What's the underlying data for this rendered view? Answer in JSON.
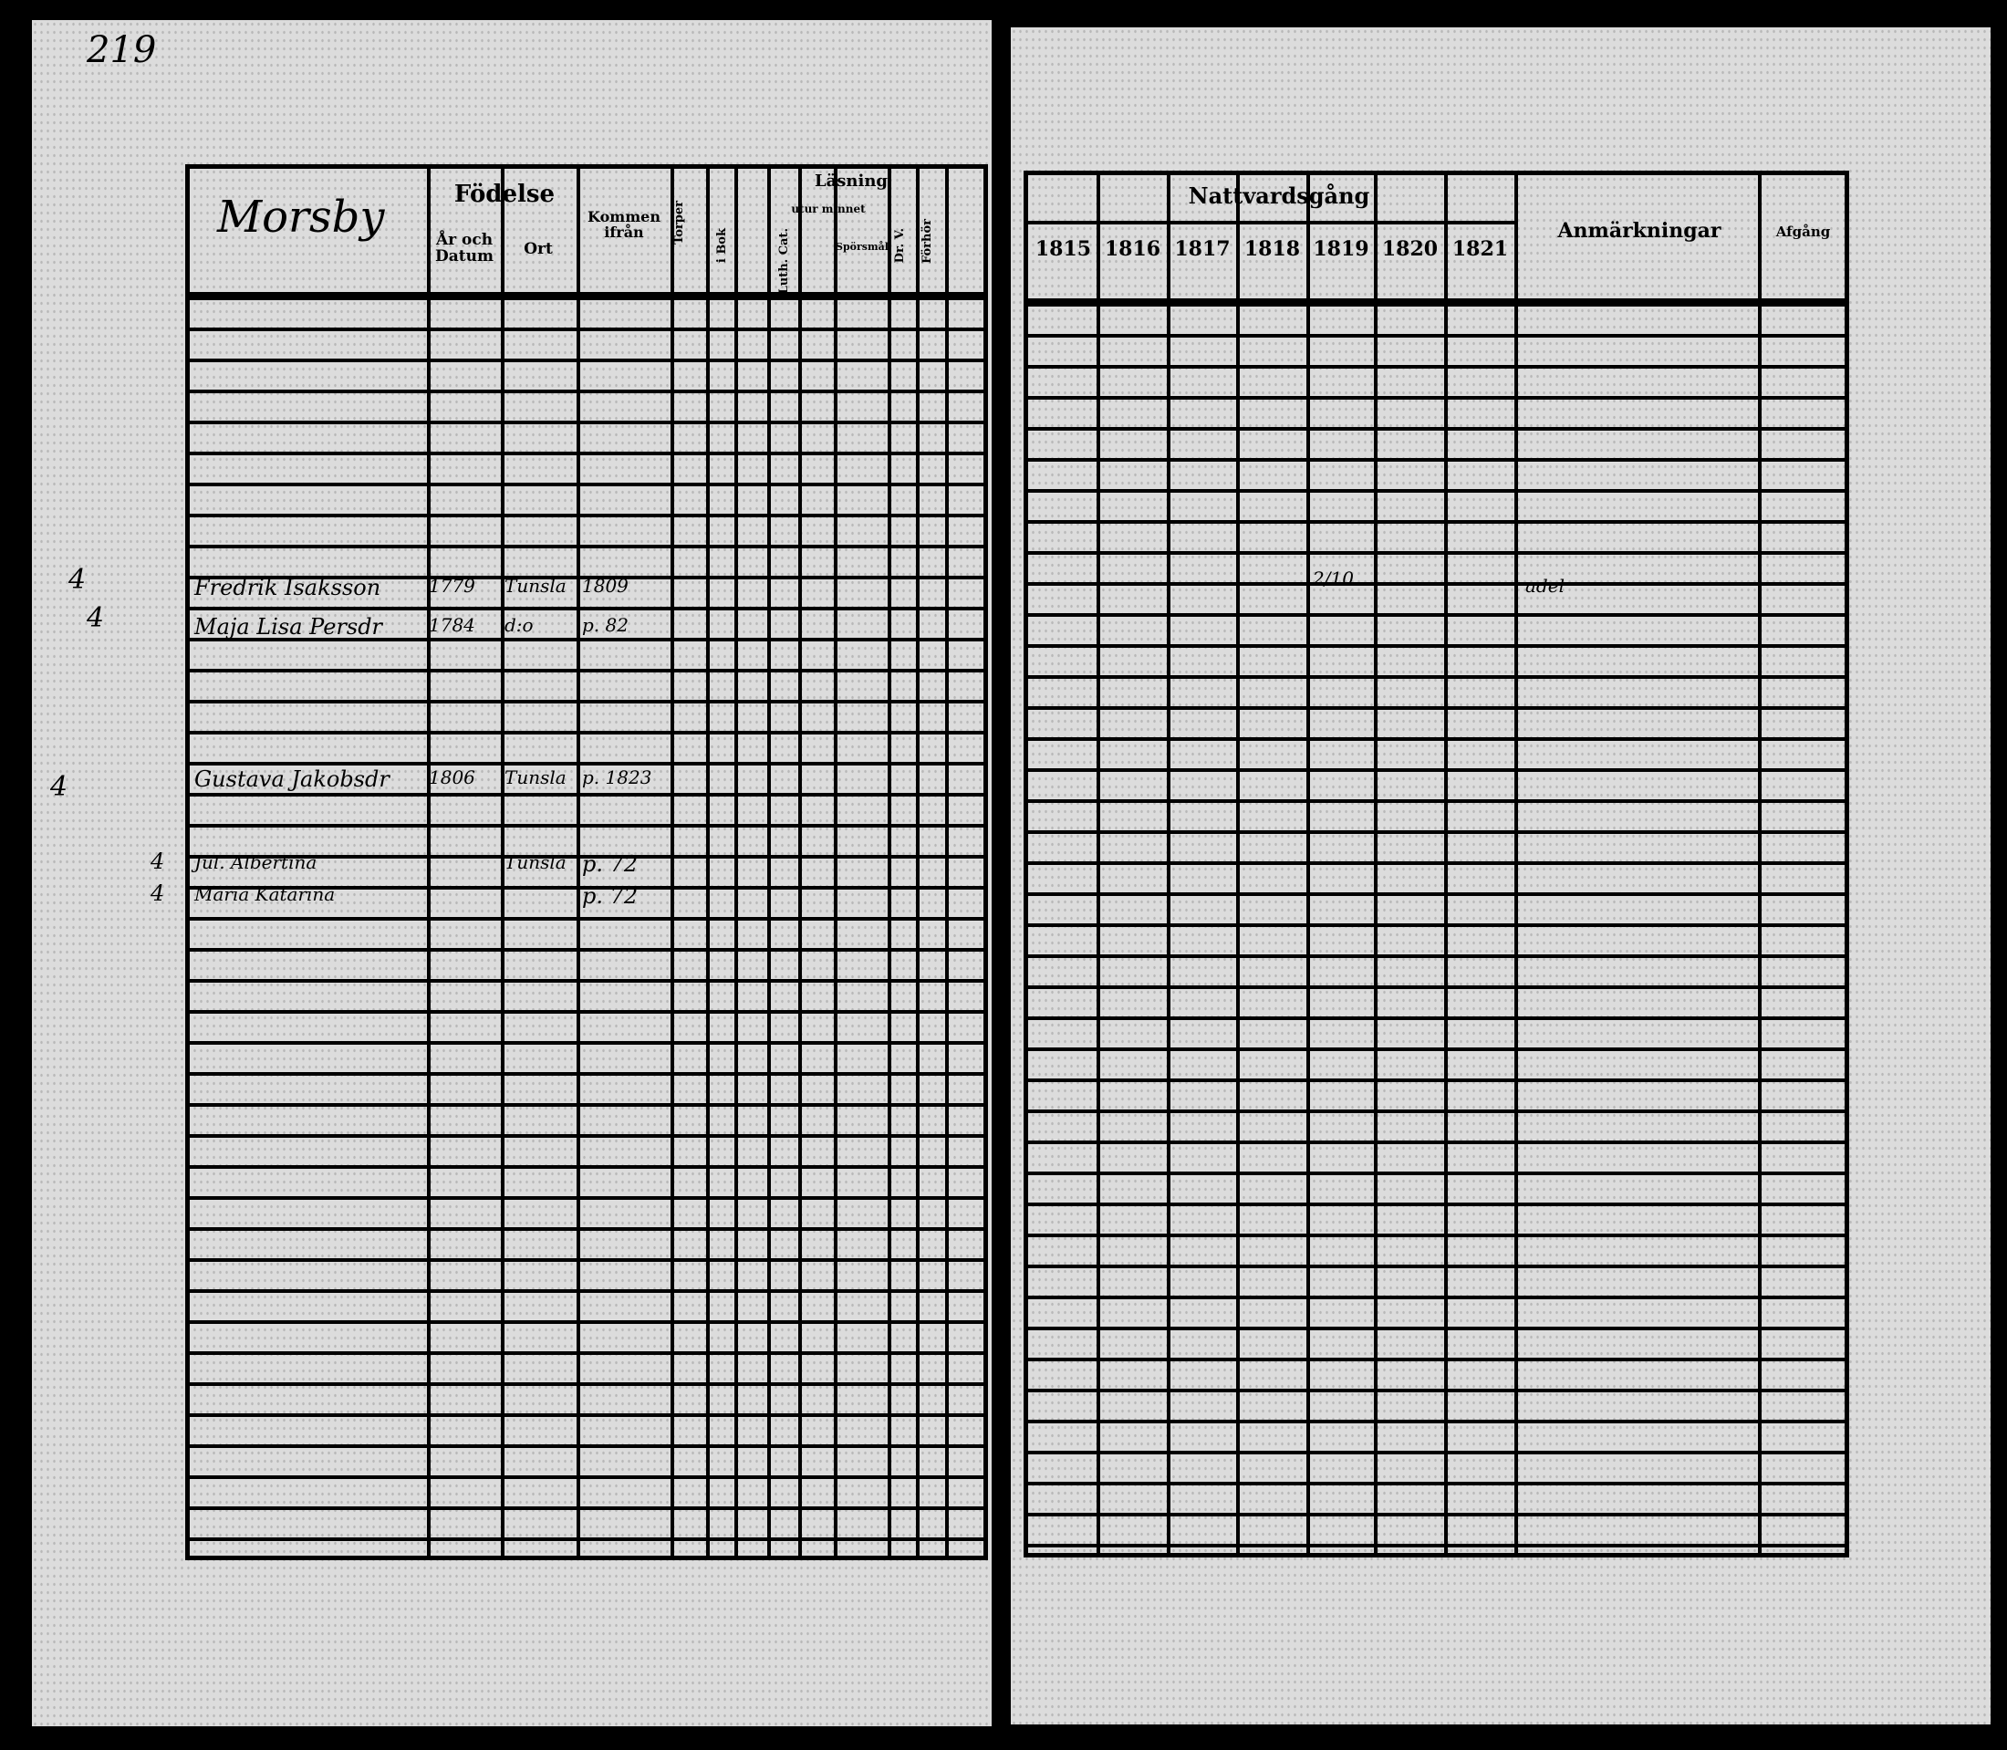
{
  "left_page": {
    "page_number": "219",
    "village": "Morsby",
    "headers": {
      "fodelse": "Födelse",
      "ar_och_datum": "År och Datum",
      "ort": "Ort",
      "kommen_ifran": "Kommen ifrån",
      "torper": "Torper",
      "lasning": "Läsning",
      "utur_minnet": "utur minnet",
      "i_bok": "i Bok",
      "luth_cat": "Luth. Cat.",
      "spors": "Spörsmål",
      "dr_v": "Dr. V.",
      "forhor": "Förhör"
    },
    "margin_notes": [
      "4",
      "4",
      "4",
      "4",
      "4"
    ],
    "entries": [
      {
        "name": "Fredrik Isaksson",
        "born": "1779",
        "place": "Tunsla",
        "from": "1809"
      },
      {
        "name": "Maja Lisa Persdr",
        "born": "1784",
        "place": "d:o",
        "from": "p. 82"
      },
      {
        "name": "Gustava Jakobsdr",
        "born": "1806",
        "place": "Tunsla",
        "from": "p. 1823"
      },
      {
        "name": "Jul. Albertina",
        "place": "Tunsla",
        "from": "p. 72"
      },
      {
        "name": "Maria Katarina",
        "from": "p. 72"
      }
    ]
  },
  "right_page": {
    "headers": {
      "nattvardsgang": "Nattvardsgång",
      "years": [
        "1815",
        "1816",
        "1817",
        "1818",
        "1819",
        "1820",
        "1821"
      ],
      "anmarkningar": "Anmärkningar",
      "afgang": "Afgång"
    },
    "entries": [
      {
        "communion_1819": "2/10",
        "remark": "adel"
      }
    ]
  }
}
